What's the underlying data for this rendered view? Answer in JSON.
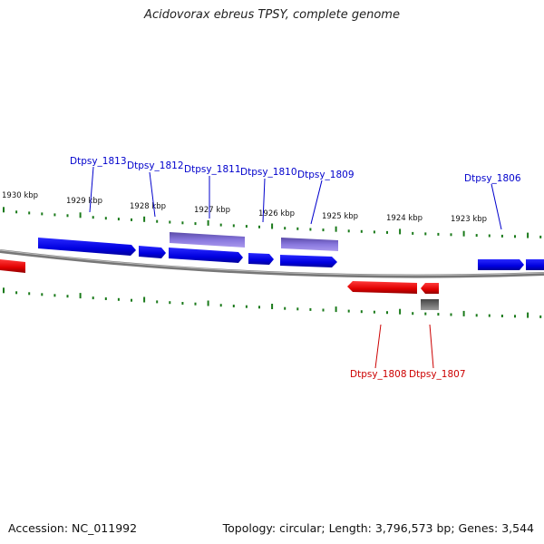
{
  "title": "Acidovorax ebreus TPSY, complete genome",
  "footer": {
    "accession": "Accession: NC_011992",
    "summary": "Topology: circular; Length: 3,796,573 bp; Genes: 3,544"
  },
  "colors": {
    "forward_gene": "#0000ee",
    "reverse_gene": "#ee0000",
    "other_feature": "#7766cc",
    "gray_feature": "#666666",
    "backbone": "#888888",
    "ticks": "#1a7a1a"
  },
  "scale_labels": [
    "1930 kbp",
    "1929 kbp",
    "1928 kbp",
    "1927 kbp",
    "1926 kbp",
    "1925 kbp",
    "1924 kbp",
    "1923 kbp"
  ],
  "forward_labels": [
    "Dtpsy_1813",
    "Dtpsy_1812",
    "Dtpsy_1811",
    "Dtpsy_1810",
    "Dtpsy_1809",
    "Dtpsy_1806"
  ],
  "reverse_labels": [
    "Dtpsy_1808",
    "Dtpsy_1807"
  ]
}
